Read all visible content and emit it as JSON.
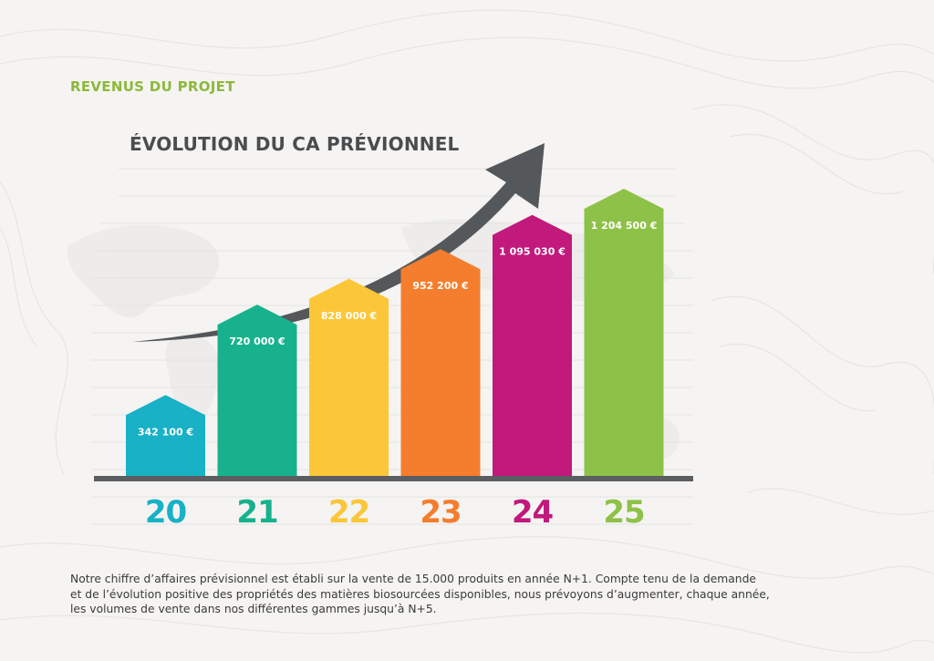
{
  "header": {
    "section_title": "REVENUS DU PROJET"
  },
  "colors": {
    "accent": "#8cb83a",
    "axis": "#5b5e61",
    "arrow": "#55585b"
  },
  "chart_data": {
    "type": "bar",
    "title": "ÉVOLUTION DU CA PRÉVIONNEL",
    "categories": [
      "20",
      "21",
      "22",
      "23",
      "24",
      "25"
    ],
    "values": [
      342100,
      720000,
      828000,
      952200,
      1095030,
      1204500
    ],
    "data_labels": [
      "342 100 €",
      "720 000 €",
      "828 000 €",
      "952 200 €",
      "1 095 030 €",
      "1 204 500 €"
    ],
    "colors": [
      "#18b1c6",
      "#17b28d",
      "#fbc638",
      "#f47e2e",
      "#c1197c",
      "#8ec148"
    ],
    "ylim": [
      0,
      1250000
    ],
    "grid": false,
    "legend": "none",
    "trend_arrow": true
  },
  "description": {
    "lines": [
      "Notre chiffre d’affaires prévisionnel est établi sur la vente de 15.000 produits en année N+1. Compte tenu de la demande",
      "et de l’évolution positive des propriétés des matières biosourcées disponibles, nous prévoyons d’augmenter, chaque année,",
      "les volumes de vente dans nos différentes gammes jusqu’à N+5."
    ]
  }
}
